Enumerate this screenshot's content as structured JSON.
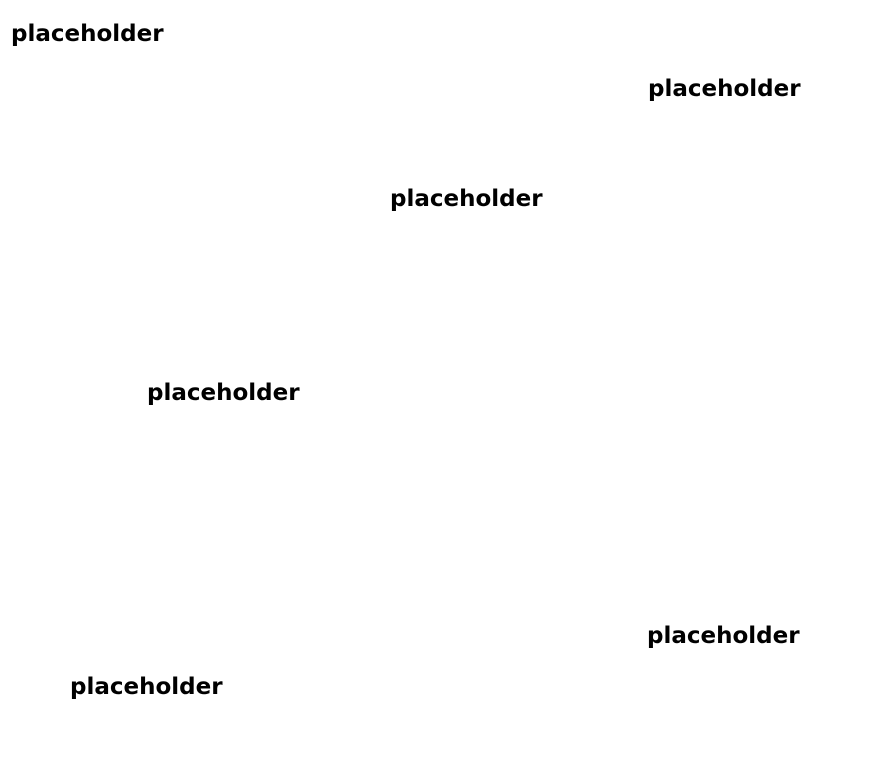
{
  "canvas": {
    "background": "#ffffff",
    "text_color": "#000000"
  },
  "labels": [
    "placeholder",
    "placeholder",
    "placeholder",
    "placeholder",
    "placeholder",
    "placeholder"
  ]
}
